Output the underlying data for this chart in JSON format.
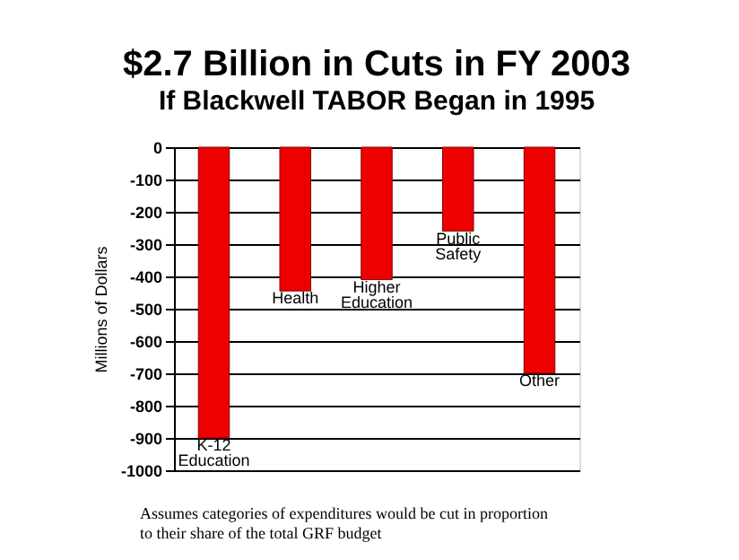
{
  "chart_data": {
    "type": "bar",
    "title": "$2.7 Billion in Cuts in FY 2003",
    "subtitle": "If Blackwell TABOR Began in 1995",
    "ylabel": "Millions of Dollars",
    "categories": [
      "K-12 Education",
      "Health",
      "Higher Education",
      "Public Safety",
      "Other"
    ],
    "values": [
      -900,
      -445,
      -410,
      -260,
      -700
    ],
    "color": "#ee0000",
    "ylim": [
      -1000,
      0
    ],
    "yticks": [
      0,
      -100,
      -200,
      -300,
      -400,
      -500,
      -600,
      -700,
      -800,
      -900,
      -1000
    ],
    "grid": "y",
    "annotations": [
      "Assumes categories of expenditures would be cut in proportion\nto their share of the total GRF budget"
    ]
  }
}
